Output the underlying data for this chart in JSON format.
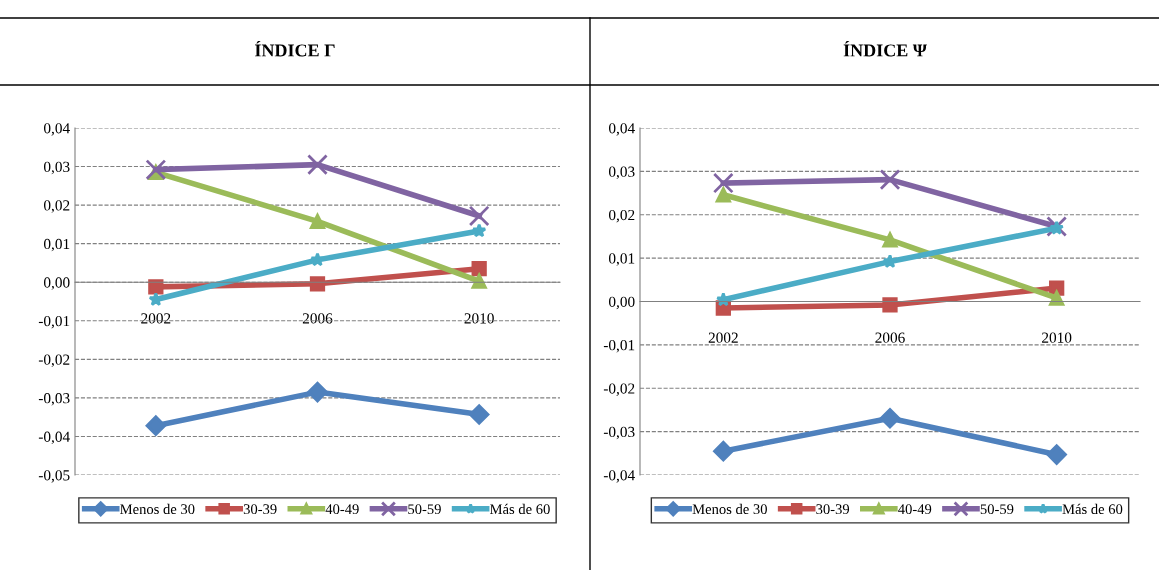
{
  "chart_data": [
    {
      "type": "line",
      "title": "ÍNDICE Γ",
      "categories": [
        "2002",
        "2006",
        "2010"
      ],
      "series": [
        {
          "name": "Menos de 30",
          "color": "#4f81bd",
          "marker": "diamond",
          "values": [
            -0.0372,
            -0.0285,
            -0.0343
          ]
        },
        {
          "name": "30-39",
          "color": "#c0504d",
          "marker": "square",
          "values": [
            -0.0012,
            -0.0004,
            0.0035
          ]
        },
        {
          "name": "40-49",
          "color": "#9bbb59",
          "marker": "triangle",
          "values": [
            0.0285,
            0.0158,
            0.0003
          ]
        },
        {
          "name": "50-59",
          "color": "#8064a2",
          "marker": "cross",
          "values": [
            0.0292,
            0.0305,
            0.0172
          ]
        },
        {
          "name": "Más de 60",
          "color": "#4bacc6",
          "marker": "star",
          "values": [
            -0.0045,
            0.0058,
            0.0133
          ]
        }
      ],
      "ylim": [
        -0.05,
        0.04
      ],
      "yticks": [
        {
          "value": -0.05,
          "label": "-0,05"
        },
        {
          "value": -0.04,
          "label": "-0,04"
        },
        {
          "value": -0.03,
          "label": "-0,03"
        },
        {
          "value": -0.02,
          "label": "-0,02"
        },
        {
          "value": -0.01,
          "label": "-0,01"
        },
        {
          "value": 0,
          "label": "0,00"
        },
        {
          "value": 0.01,
          "label": "0,01"
        },
        {
          "value": 0.02,
          "label": "0,02"
        },
        {
          "value": 0.03,
          "label": "0,03"
        },
        {
          "value": 0.04,
          "label": "0,04"
        }
      ],
      "grid": "y",
      "legend": "bottom"
    },
    {
      "type": "line",
      "title": "ÍNDICE Ψ",
      "categories": [
        "2002",
        "2006",
        "2010"
      ],
      "series": [
        {
          "name": "Menos de 30",
          "color": "#4f81bd",
          "marker": "diamond",
          "values": [
            -0.0345,
            -0.0269,
            -0.0353
          ]
        },
        {
          "name": "30-39",
          "color": "#c0504d",
          "marker": "square",
          "values": [
            -0.0015,
            -0.0008,
            0.0031
          ]
        },
        {
          "name": "40-49",
          "color": "#9bbb59",
          "marker": "triangle",
          "values": [
            0.0246,
            0.0142,
            0.0008
          ]
        },
        {
          "name": "50-59",
          "color": "#8064a2",
          "marker": "cross",
          "values": [
            0.0273,
            0.0281,
            0.0173
          ]
        },
        {
          "name": "Más de 60",
          "color": "#4bacc6",
          "marker": "star",
          "values": [
            0.0004,
            0.0092,
            0.0169
          ]
        }
      ],
      "ylim": [
        -0.04,
        0.04
      ],
      "yticks": [
        {
          "value": -0.04,
          "label": "-0,04"
        },
        {
          "value": -0.03,
          "label": "-0,03"
        },
        {
          "value": -0.02,
          "label": "-0,02"
        },
        {
          "value": -0.01,
          "label": "-0,01"
        },
        {
          "value": 0,
          "label": "0,00"
        },
        {
          "value": 0.01,
          "label": "0,01"
        },
        {
          "value": 0.02,
          "label": "0,02"
        },
        {
          "value": 0.03,
          "label": "0,03"
        },
        {
          "value": 0.04,
          "label": "0,04"
        }
      ],
      "grid": "y",
      "legend": "bottom"
    }
  ]
}
